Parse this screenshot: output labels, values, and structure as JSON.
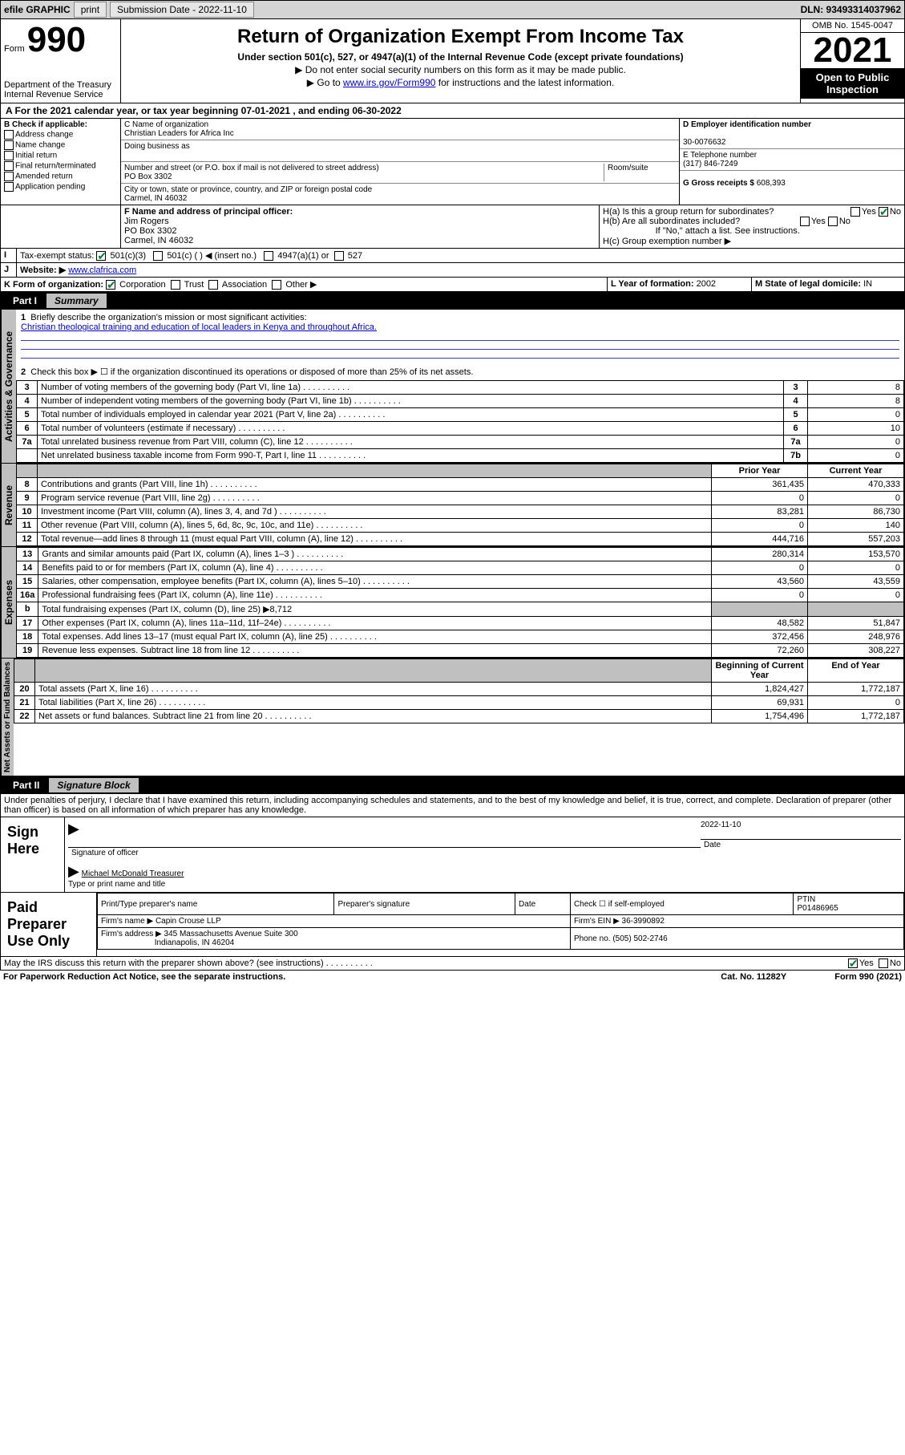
{
  "topbar": {
    "efile": "efile GRAPHIC",
    "print": "print",
    "subdate_label": "Submission Date - 2022-11-10",
    "dln": "DLN: 93493314037962"
  },
  "header": {
    "form_word": "Form",
    "form_no": "990",
    "title": "Return of Organization Exempt From Income Tax",
    "sub": "Under section 501(c), 527, or 4947(a)(1) of the Internal Revenue Code (except private foundations)",
    "line2": "▶ Do not enter social security numbers on this form as it may be made public.",
    "line3_pre": "▶ Go to ",
    "line3_link": "www.irs.gov/Form990",
    "line3_post": " for instructions and the latest information.",
    "dept": "Department of the Treasury",
    "irs": "Internal Revenue Service",
    "omb": "OMB No. 1545-0047",
    "year": "2021",
    "open": "Open to Public Inspection"
  },
  "A": {
    "text": "A For the 2021 calendar year, or tax year beginning 07-01-2021   , and ending 06-30-2022"
  },
  "B": {
    "label": "B Check if applicable:",
    "addr": "Address change",
    "name": "Name change",
    "init": "Initial return",
    "final": "Final return/terminated",
    "amend": "Amended return",
    "app": "Application pending"
  },
  "C": {
    "name_label": "C Name of organization",
    "name": "Christian Leaders for Africa Inc",
    "dba_label": "Doing business as",
    "dba": "",
    "street_label": "Number and street (or P.O. box if mail is not delivered to street address)",
    "room_label": "Room/suite",
    "street": "PO Box 3302",
    "city_label": "City or town, state or province, country, and ZIP or foreign postal code",
    "city": "Carmel, IN  46032"
  },
  "D": {
    "label": "D Employer identification number",
    "value": "30-0076632"
  },
  "E": {
    "label": "E Telephone number",
    "value": "(317) 846-7249"
  },
  "G": {
    "label": "G Gross receipts $",
    "value": "608,393"
  },
  "F": {
    "label": "F Name and address of principal officer:",
    "name": "Jim Rogers",
    "street": "PO Box 3302",
    "city": "Carmel, IN  46032"
  },
  "H": {
    "a": "H(a)  Is this a group return for subordinates?",
    "a_yes": "Yes",
    "a_no": "No",
    "b": "H(b)  Are all subordinates included?",
    "b_yes": "Yes",
    "b_no": "No",
    "b_note": "If \"No,\" attach a list. See instructions.",
    "c": "H(c)  Group exemption number ▶"
  },
  "I": {
    "label": "Tax-exempt status:",
    "c501c3": "501(c)(3)",
    "c501c": "501(c) (  ) ◀ (insert no.)",
    "c4947": "4947(a)(1) or",
    "c527": "527"
  },
  "J": {
    "label": "Website: ▶",
    "value": "www.clafrica.com"
  },
  "K": {
    "label": "K Form of organization:",
    "corp": "Corporation",
    "trust": "Trust",
    "assoc": "Association",
    "other": "Other ▶"
  },
  "L": {
    "label": "L Year of formation:",
    "value": "2002"
  },
  "M": {
    "label": "M State of legal domicile:",
    "value": "IN"
  },
  "part1": {
    "pn": "Part I",
    "pt": "Summary"
  },
  "summary": {
    "l1_label": "Briefly describe the organization's mission or most significant activities:",
    "l1_text": "Christian theological training and education of local leaders in Kenya and throughout Africa.",
    "l2": "Check this box ▶ ☐  if the organization discontinued its operations or disposed of more than 25% of its net assets.",
    "rows_ag": [
      {
        "n": "3",
        "t": "Number of voting members of the governing body (Part VI, line 1a)",
        "box": "3",
        "v": "8"
      },
      {
        "n": "4",
        "t": "Number of independent voting members of the governing body (Part VI, line 1b)",
        "box": "4",
        "v": "8"
      },
      {
        "n": "5",
        "t": "Total number of individuals employed in calendar year 2021 (Part V, line 2a)",
        "box": "5",
        "v": "0"
      },
      {
        "n": "6",
        "t": "Total number of volunteers (estimate if necessary)",
        "box": "6",
        "v": "10"
      },
      {
        "n": "7a",
        "t": "Total unrelated business revenue from Part VIII, column (C), line 12",
        "box": "7a",
        "v": "0"
      },
      {
        "n": "",
        "t": "Net unrelated business taxable income from Form 990-T, Part I, line 11",
        "box": "7b",
        "v": "0"
      }
    ],
    "col_prior": "Prior Year",
    "col_current": "Current Year",
    "rows_rev": [
      {
        "n": "8",
        "t": "Contributions and grants (Part VIII, line 1h)",
        "p": "361,435",
        "c": "470,333"
      },
      {
        "n": "9",
        "t": "Program service revenue (Part VIII, line 2g)",
        "p": "0",
        "c": "0"
      },
      {
        "n": "10",
        "t": "Investment income (Part VIII, column (A), lines 3, 4, and 7d )",
        "p": "83,281",
        "c": "86,730"
      },
      {
        "n": "11",
        "t": "Other revenue (Part VIII, column (A), lines 5, 6d, 8c, 9c, 10c, and 11e)",
        "p": "0",
        "c": "140"
      },
      {
        "n": "12",
        "t": "Total revenue—add lines 8 through 11 (must equal Part VIII, column (A), line 12)",
        "p": "444,716",
        "c": "557,203"
      }
    ],
    "rows_exp": [
      {
        "n": "13",
        "t": "Grants and similar amounts paid (Part IX, column (A), lines 1–3 )",
        "p": "280,314",
        "c": "153,570"
      },
      {
        "n": "14",
        "t": "Benefits paid to or for members (Part IX, column (A), line 4)",
        "p": "0",
        "c": "0"
      },
      {
        "n": "15",
        "t": "Salaries, other compensation, employee benefits (Part IX, column (A), lines 5–10)",
        "p": "43,560",
        "c": "43,559"
      },
      {
        "n": "16a",
        "t": "Professional fundraising fees (Part IX, column (A), line 11e)",
        "p": "0",
        "c": "0"
      },
      {
        "n": "b",
        "t": "Total fundraising expenses (Part IX, column (D), line 25) ▶8,712",
        "p": "",
        "c": "",
        "shade": true
      },
      {
        "n": "17",
        "t": "Other expenses (Part IX, column (A), lines 11a–11d, 11f–24e)",
        "p": "48,582",
        "c": "51,847"
      },
      {
        "n": "18",
        "t": "Total expenses. Add lines 13–17 (must equal Part IX, column (A), line 25)",
        "p": "372,456",
        "c": "248,976"
      },
      {
        "n": "19",
        "t": "Revenue less expenses. Subtract line 18 from line 12",
        "p": "72,260",
        "c": "308,227"
      }
    ],
    "col_begin": "Beginning of Current Year",
    "col_end": "End of Year",
    "rows_bal": [
      {
        "n": "20",
        "t": "Total assets (Part X, line 16)",
        "p": "1,824,427",
        "c": "1,772,187"
      },
      {
        "n": "21",
        "t": "Total liabilities (Part X, line 26)",
        "p": "69,931",
        "c": "0"
      },
      {
        "n": "22",
        "t": "Net assets or fund balances. Subtract line 21 from line 20",
        "p": "1,754,496",
        "c": "1,772,187"
      }
    ]
  },
  "vlabels": {
    "ag": "Activities & Governance",
    "rev": "Revenue",
    "exp": "Expenses",
    "bal": "Net Assets or Fund Balances"
  },
  "part2": {
    "pn": "Part II",
    "pt": "Signature Block"
  },
  "penalty": "Under penalties of perjury, I declare that I have examined this return, including accompanying schedules and statements, and to the best of my knowledge and belief, it is true, correct, and complete. Declaration of preparer (other than officer) is based on all information of which preparer has any knowledge.",
  "sign": {
    "here": "Sign Here",
    "sig_officer": "Signature of officer",
    "date": "Date",
    "date_val": "2022-11-10",
    "name_title": "Michael McDonald  Treasurer",
    "name_label": "Type or print name and title"
  },
  "paid": {
    "label": "Paid Preparer Use Only",
    "h1": "Print/Type preparer's name",
    "h2": "Preparer's signature",
    "h3": "Date",
    "h4_check": "Check ☐ if self-employed",
    "h5": "PTIN",
    "ptin": "P01486965",
    "firm_name_l": "Firm's name    ▶",
    "firm_name": "Capin Crouse LLP",
    "firm_ein_l": "Firm's EIN ▶",
    "firm_ein": "36-3990892",
    "firm_addr_l": "Firm's address ▶",
    "firm_addr1": "345 Massachusetts Avenue Suite 300",
    "firm_addr2": "Indianapolis, IN  46204",
    "phone_l": "Phone no.",
    "phone": "(505) 502-2746"
  },
  "discuss": {
    "q": "May the IRS discuss this return with the preparer shown above? (see instructions)",
    "yes": "Yes",
    "no": "No"
  },
  "footer": {
    "pra": "For Paperwork Reduction Act Notice, see the separate instructions.",
    "cat": "Cat. No. 11282Y",
    "form": "Form 990 (2021)"
  }
}
